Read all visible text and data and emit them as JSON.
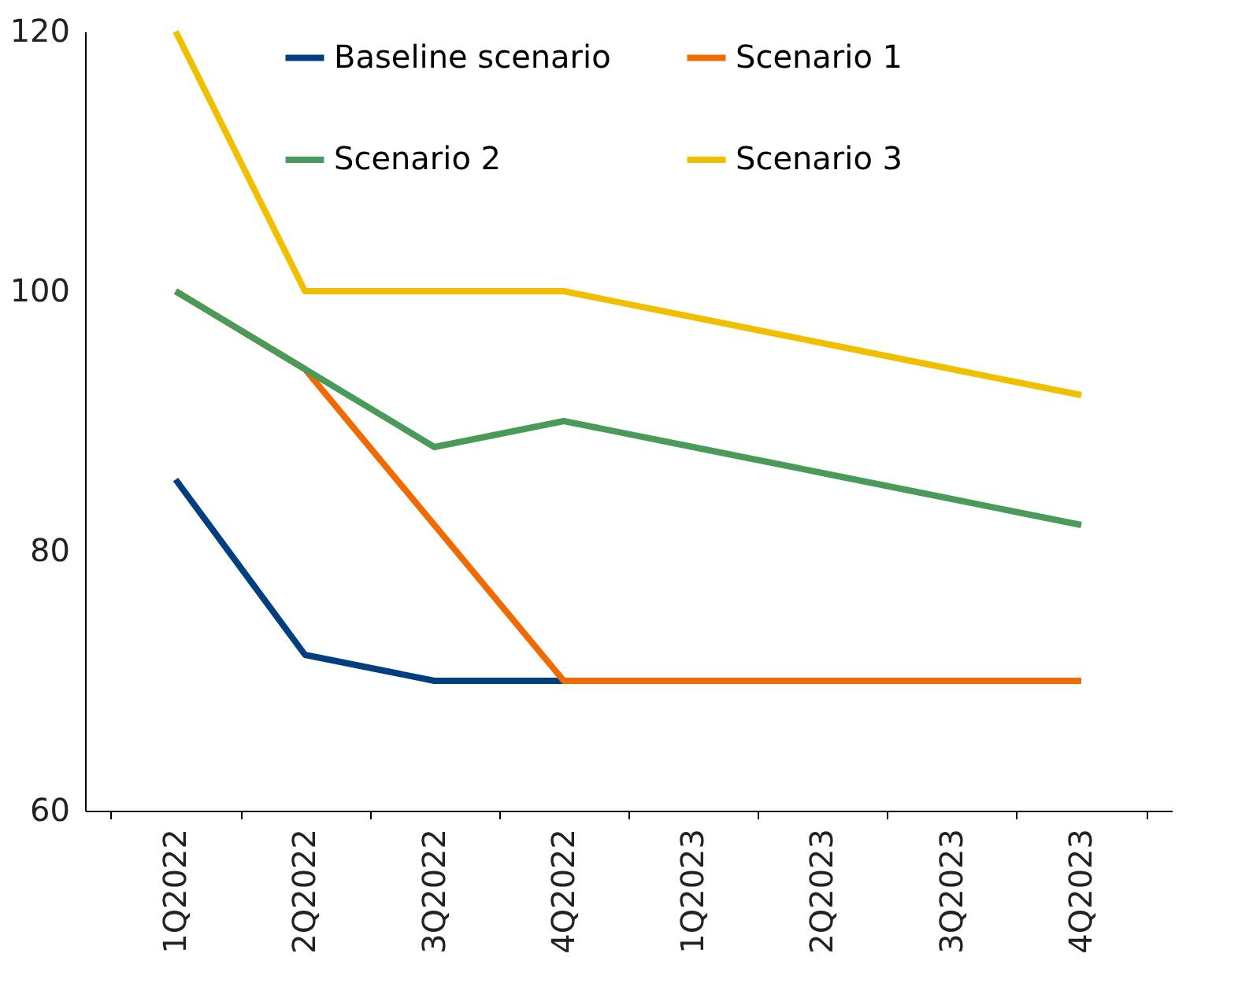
{
  "chart_data": {
    "type": "line",
    "categories": [
      "1Q2022",
      "2Q2022",
      "3Q2022",
      "4Q2022",
      "1Q2023",
      "2Q2023",
      "3Q2023",
      "4Q2023"
    ],
    "series": [
      {
        "name": "Baseline scenario",
        "color": "#003f7f",
        "values": [
          85.5,
          72,
          70,
          70,
          null,
          null,
          null,
          null
        ]
      },
      {
        "name": "Scenario 1",
        "color": "#f06a00",
        "values": [
          100,
          94,
          82,
          70,
          70,
          70,
          70,
          70
        ]
      },
      {
        "name": "Scenario 2",
        "color": "#4a9a5a",
        "values": [
          100,
          94,
          88,
          90,
          88,
          86,
          84,
          82
        ]
      },
      {
        "name": "Scenario 3",
        "color": "#f0c000",
        "values": [
          120,
          100,
          100,
          100,
          98,
          96,
          94,
          92
        ]
      }
    ],
    "ylim": [
      60,
      120
    ],
    "yticks": [
      60,
      80,
      100,
      120
    ],
    "grid": false,
    "legend": "top",
    "marker": "none",
    "line_style": "solid"
  }
}
